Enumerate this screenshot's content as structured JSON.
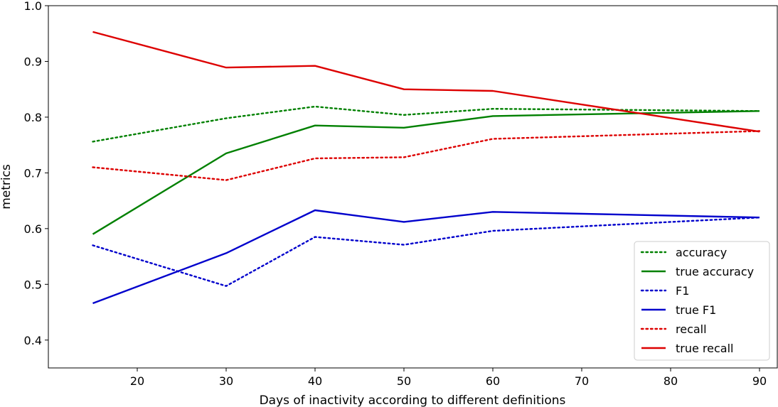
{
  "chart_data": {
    "type": "line",
    "title": "",
    "xlabel": "Days of inactivity according to different definitions",
    "ylabel": "metrics",
    "xlim": [
      10,
      92
    ],
    "ylim": [
      0.35,
      1.0
    ],
    "xticks": [
      20,
      30,
      40,
      50,
      60,
      70,
      80,
      90
    ],
    "xtick_labels": [
      "20",
      "30",
      "40",
      "50",
      "60",
      "70",
      "80",
      "90"
    ],
    "yticks": [
      0.4,
      0.5,
      0.6,
      0.7,
      0.8,
      0.9,
      1.0
    ],
    "ytick_labels": [
      "0.4",
      "0.5",
      "0.6",
      "0.7",
      "0.8",
      "0.9",
      "1.0"
    ],
    "grid": false,
    "legend_position": "lower-right",
    "x": [
      15,
      30,
      40,
      50,
      60,
      90
    ],
    "series": [
      {
        "name": "accuracy",
        "color": "#008000",
        "style": "dotted",
        "values": [
          0.756,
          0.798,
          0.819,
          0.804,
          0.815,
          0.811
        ]
      },
      {
        "name": "true accuracy",
        "color": "#008000",
        "style": "solid",
        "values": [
          0.59,
          0.735,
          0.785,
          0.781,
          0.802,
          0.811
        ]
      },
      {
        "name": "F1",
        "color": "#0000cc",
        "style": "dotted",
        "values": [
          0.57,
          0.497,
          0.585,
          0.571,
          0.596,
          0.62
        ]
      },
      {
        "name": "true F1",
        "color": "#0000cc",
        "style": "solid",
        "values": [
          0.466,
          0.556,
          0.633,
          0.612,
          0.63,
          0.62
        ]
      },
      {
        "name": "recall",
        "color": "#dd0000",
        "style": "dotted",
        "values": [
          0.71,
          0.687,
          0.726,
          0.728,
          0.761,
          0.775
        ]
      },
      {
        "name": "true recall",
        "color": "#dd0000",
        "style": "solid",
        "values": [
          0.953,
          0.889,
          0.892,
          0.85,
          0.847,
          0.774
        ]
      }
    ]
  }
}
